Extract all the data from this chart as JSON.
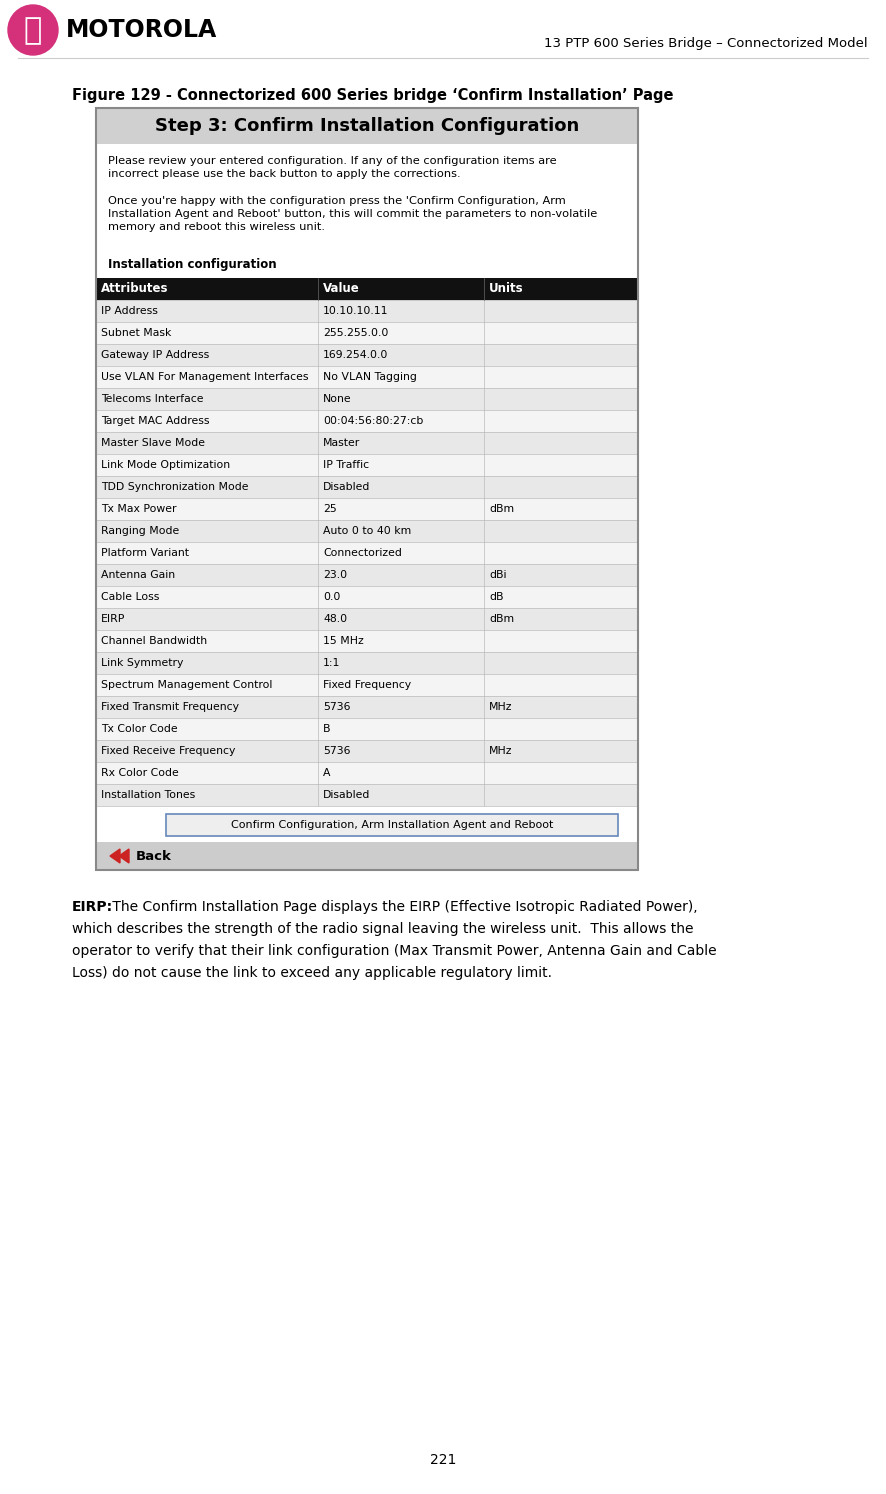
{
  "header_text": "13 PTP 600 Series Bridge – Connectorized Model",
  "figure_caption": "Figure 129 - Connectorized 600 Series bridge ‘Confirm Installation’ Page",
  "box_title": "Step 3: Confirm Installation Configuration",
  "para1": "Please review your entered configuration. If any of the configuration items are\nincorrect please use the back button to apply the corrections.",
  "para2": "Once you're happy with the configuration press the 'Confirm Configuration, Arm\nInstallation Agent and Reboot' button, this will commit the parameters to non-volatile\nmemory and reboot this wireless unit.",
  "section_label": "Installation configuration",
  "table_headers": [
    "Attributes",
    "Value",
    "Units"
  ],
  "table_rows": [
    [
      "IP Address",
      "10.10.10.11",
      ""
    ],
    [
      "Subnet Mask",
      "255.255.0.0",
      ""
    ],
    [
      "Gateway IP Address",
      "169.254.0.0",
      ""
    ],
    [
      "Use VLAN For Management Interfaces",
      "No VLAN Tagging",
      ""
    ],
    [
      "Telecoms Interface",
      "None",
      ""
    ],
    [
      "Target MAC Address",
      "00:04:56:80:27:cb",
      ""
    ],
    [
      "Master Slave Mode",
      "Master",
      ""
    ],
    [
      "Link Mode Optimization",
      "IP Traffic",
      ""
    ],
    [
      "TDD Synchronization Mode",
      "Disabled",
      ""
    ],
    [
      "Tx Max Power",
      "25",
      "dBm"
    ],
    [
      "Ranging Mode",
      "Auto 0 to 40 km",
      ""
    ],
    [
      "Platform Variant",
      "Connectorized",
      ""
    ],
    [
      "Antenna Gain",
      "23.0",
      "dBi"
    ],
    [
      "Cable Loss",
      "0.0",
      "dB"
    ],
    [
      "EIRP",
      "48.0",
      "dBm"
    ],
    [
      "Channel Bandwidth",
      "15 MHz",
      ""
    ],
    [
      "Link Symmetry",
      "1:1",
      ""
    ],
    [
      "Spectrum Management Control",
      "Fixed Frequency",
      ""
    ],
    [
      "Fixed Transmit Frequency",
      "5736",
      "MHz"
    ],
    [
      "Tx Color Code",
      "B",
      ""
    ],
    [
      "Fixed Receive Frequency",
      "5736",
      "MHz"
    ],
    [
      "Rx Color Code",
      "A",
      ""
    ],
    [
      "Installation Tones",
      "Disabled",
      ""
    ]
  ],
  "button_text": "Confirm Configuration, Arm Installation Agent and Reboot",
  "back_text": "Back",
  "eirp_bold": "EIRP:",
  "eirp_line1": " The Confirm Installation Page displays the EIRP (Effective Isotropic Radiated Power),",
  "eirp_line2": "which describes the strength of the radio signal leaving the wireless unit.  This allows the",
  "eirp_line3": "operator to verify that their link configuration (Max Transmit Power, Antenna Gain and Cable",
  "eirp_line4": "Loss) do not cause the link to exceed any applicable regulatory limit.",
  "page_number": "221",
  "bg_color": "#ffffff",
  "table_header_bg": "#111111",
  "table_header_fg": "#ffffff",
  "table_row_light": "#e8e8e8",
  "table_row_white": "#f4f4f4",
  "box_border_color": "#888888",
  "motorola_pink": "#d4317a",
  "title_bg": "#d0d0d0"
}
